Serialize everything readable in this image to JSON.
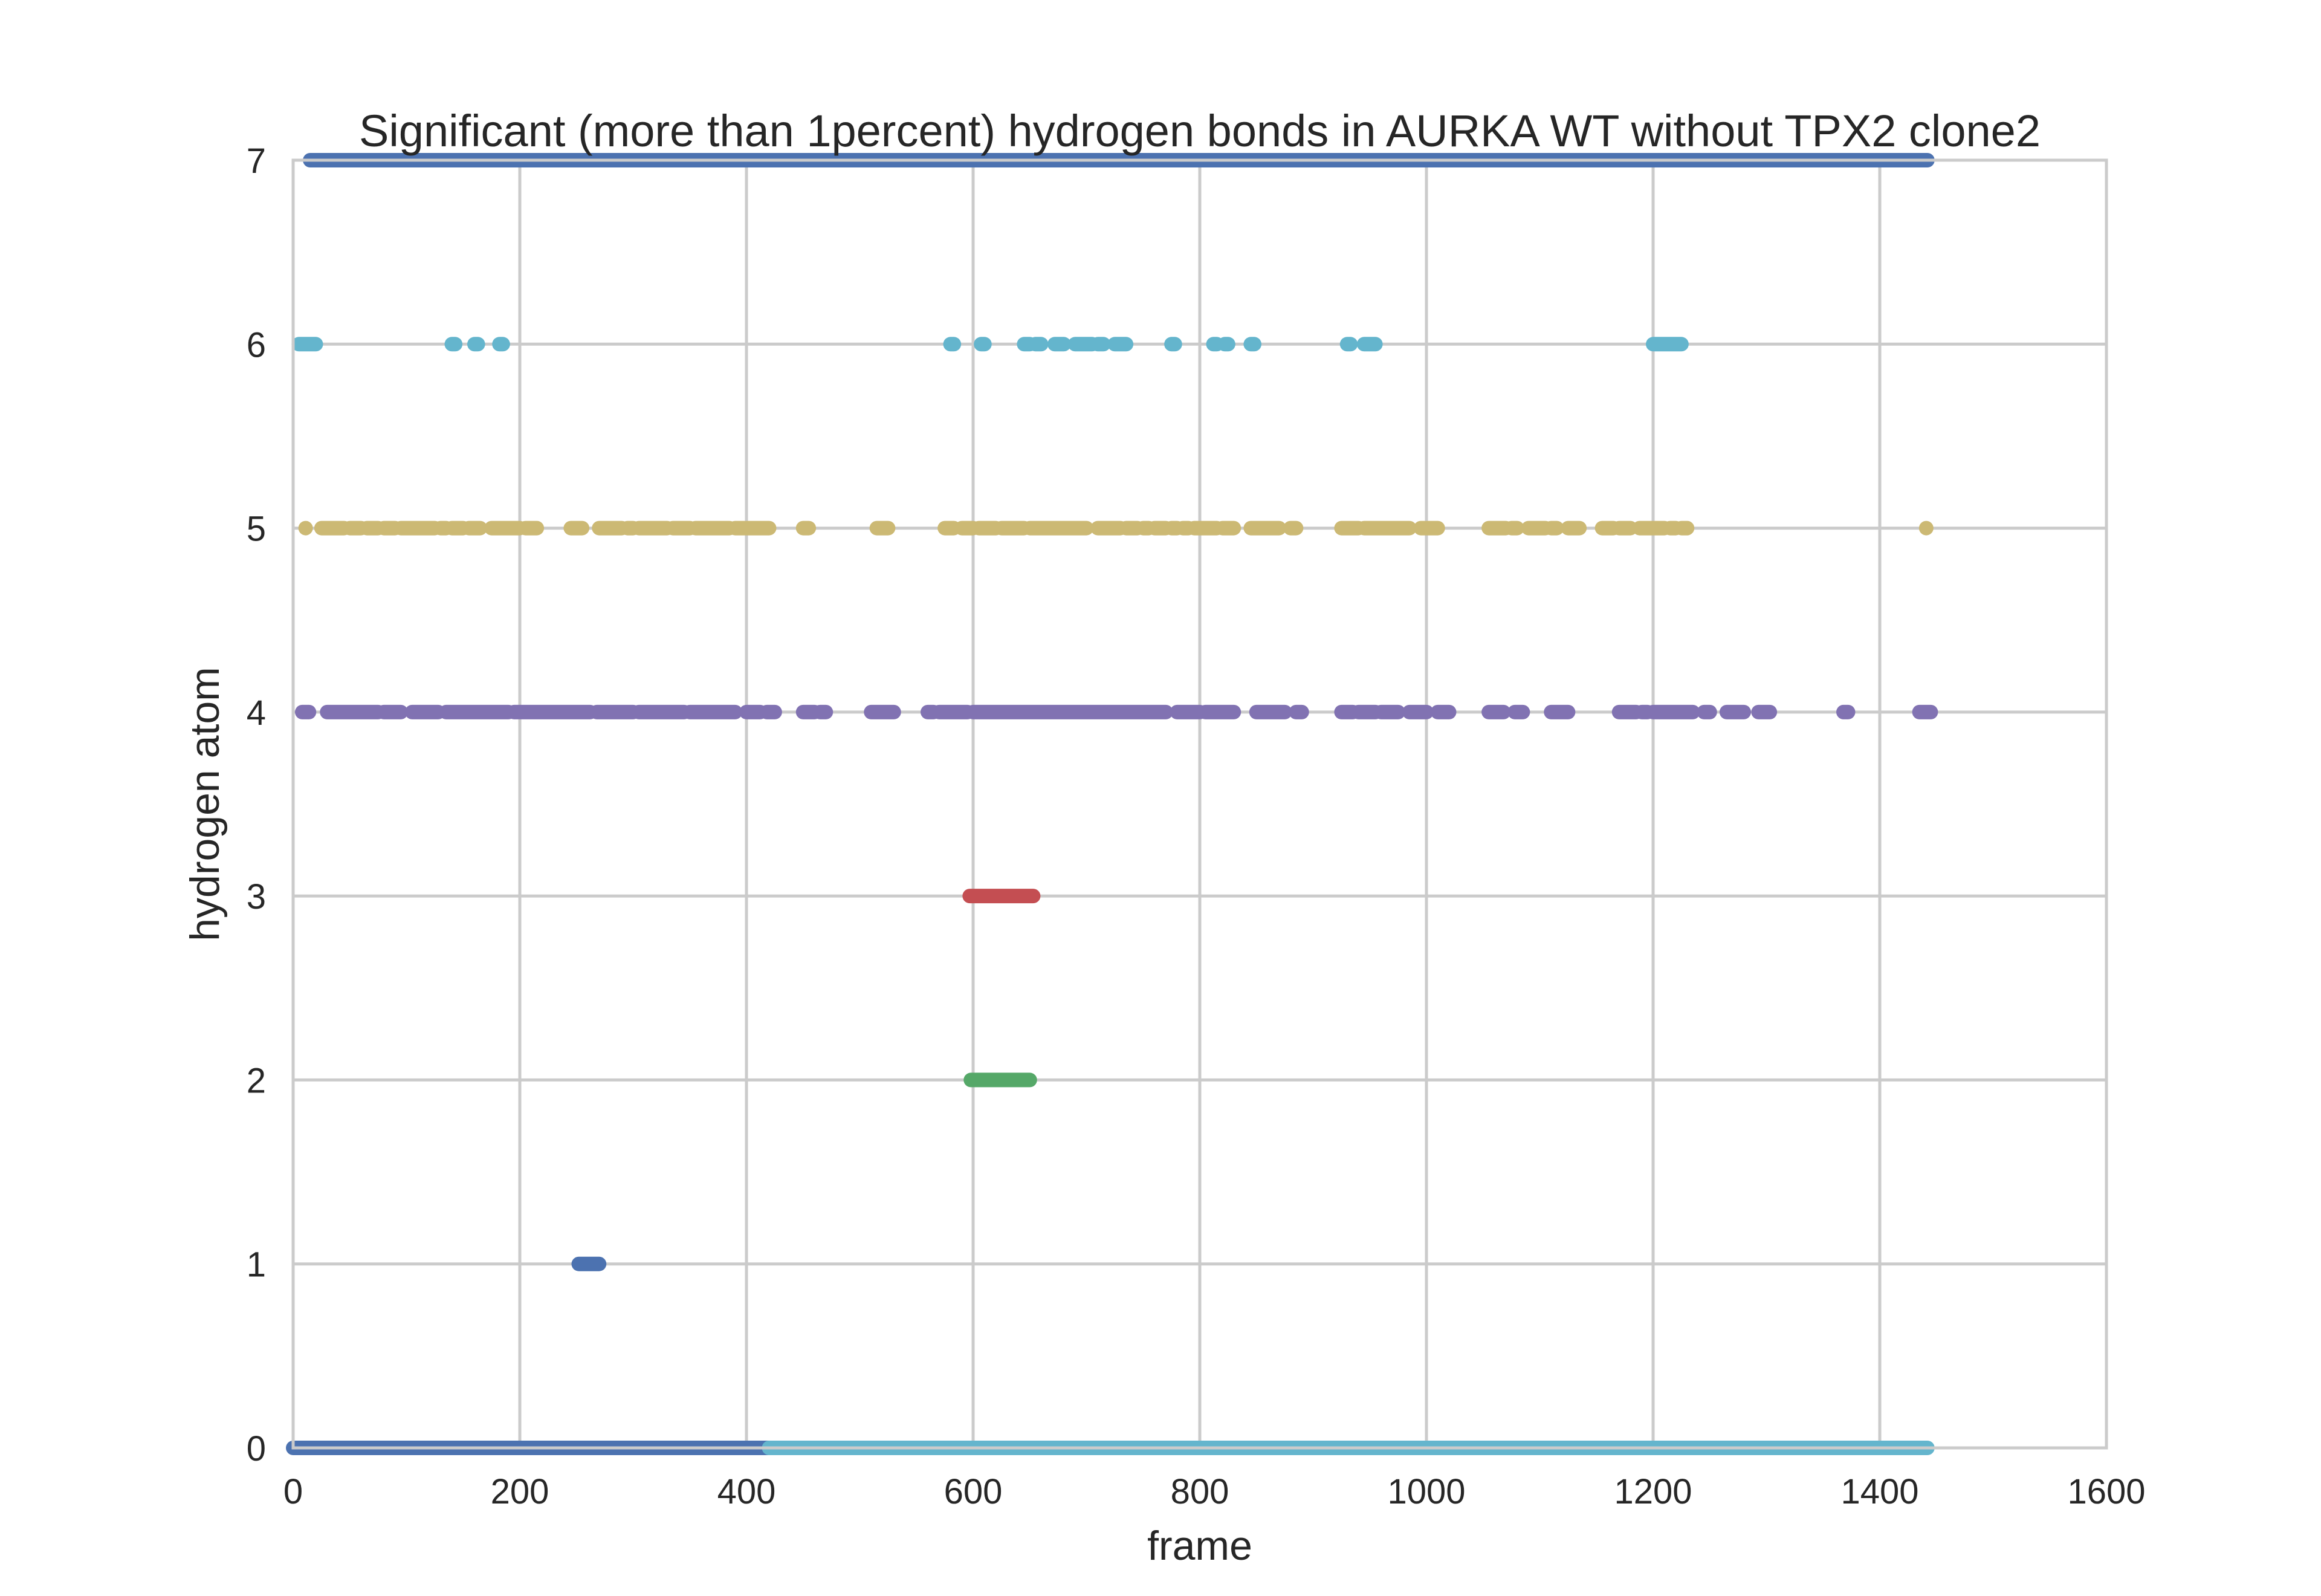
{
  "chart_data": {
    "type": "scatter",
    "title": "Significant (more than 1percent) hydrogen bonds in AURKA WT without TPX2 clone2",
    "xlabel": "frame",
    "ylabel": "hydrogen atom",
    "xlim": [
      0,
      1600
    ],
    "ylim": [
      0,
      7
    ],
    "xticks": [
      "0",
      "200",
      "400",
      "600",
      "800",
      "1000",
      "1200",
      "1400",
      "1600"
    ],
    "yticks": [
      "0",
      "1",
      "2",
      "3",
      "4",
      "5",
      "6",
      "7"
    ],
    "grid": true,
    "legend": "none",
    "colors": {
      "blue": "#4C72B0",
      "green": "#55A868",
      "red": "#C44E52",
      "purple": "#8172B2",
      "gold": "#CCB974",
      "cyan": "#64B5CD"
    },
    "series": [
      {
        "color": "blue",
        "y": 0,
        "segments": [
          [
            0,
            420
          ],
          [
            938,
            975
          ],
          [
            1108,
            1115
          ],
          [
            1190,
            1232
          ]
        ]
      },
      {
        "color": "cyan",
        "y": 0,
        "segments": [
          [
            420,
            1442
          ]
        ]
      },
      {
        "color": "blue",
        "y": 1,
        "segments": [
          [
            252,
            270
          ]
        ]
      },
      {
        "color": "green",
        "y": 2,
        "segments": [
          [
            598,
            650
          ]
        ]
      },
      {
        "color": "red",
        "y": 3,
        "segments": [
          [
            597,
            653
          ]
        ]
      },
      {
        "color": "purple",
        "y": 4,
        "segments": [
          [
            8,
            14
          ],
          [
            30,
            75
          ],
          [
            80,
            95
          ],
          [
            105,
            128
          ],
          [
            135,
            190
          ],
          [
            195,
            262
          ],
          [
            268,
            300
          ],
          [
            305,
            345
          ],
          [
            350,
            390
          ],
          [
            400,
            412
          ],
          [
            418,
            425
          ],
          [
            450,
            460
          ],
          [
            465,
            470
          ],
          [
            510,
            530
          ],
          [
            560,
            565
          ],
          [
            570,
            595
          ],
          [
            600,
            770
          ],
          [
            780,
            800
          ],
          [
            805,
            830
          ],
          [
            850,
            875
          ],
          [
            885,
            890
          ],
          [
            925,
            935
          ],
          [
            940,
            955
          ],
          [
            960,
            975
          ],
          [
            985,
            1000
          ],
          [
            1010,
            1020
          ],
          [
            1055,
            1068
          ],
          [
            1078,
            1085
          ],
          [
            1110,
            1125
          ],
          [
            1170,
            1185
          ],
          [
            1190,
            1195
          ],
          [
            1200,
            1235
          ],
          [
            1245,
            1250
          ],
          [
            1265,
            1280
          ],
          [
            1293,
            1303
          ],
          [
            1368,
            1372
          ],
          [
            1435,
            1445
          ]
        ]
      },
      {
        "color": "gold",
        "y": 5,
        "segments": [
          [
            10,
            12
          ],
          [
            25,
            45
          ],
          [
            50,
            60
          ],
          [
            65,
            75
          ],
          [
            80,
            90
          ],
          [
            95,
            125
          ],
          [
            130,
            135
          ],
          [
            140,
            150
          ],
          [
            155,
            165
          ],
          [
            175,
            200
          ],
          [
            205,
            215
          ],
          [
            245,
            255
          ],
          [
            270,
            290
          ],
          [
            295,
            300
          ],
          [
            305,
            330
          ],
          [
            335,
            350
          ],
          [
            355,
            385
          ],
          [
            390,
            420
          ],
          [
            450,
            455
          ],
          [
            515,
            525
          ],
          [
            575,
            583
          ],
          [
            590,
            600
          ],
          [
            605,
            620
          ],
          [
            625,
            645
          ],
          [
            650,
            700
          ],
          [
            710,
            730
          ],
          [
            735,
            745
          ],
          [
            750,
            755
          ],
          [
            760,
            770
          ],
          [
            775,
            780
          ],
          [
            785,
            790
          ],
          [
            795,
            815
          ],
          [
            820,
            830
          ],
          [
            845,
            870
          ],
          [
            880,
            885
          ],
          [
            925,
            940
          ],
          [
            945,
            985
          ],
          [
            995,
            1010
          ],
          [
            1055,
            1070
          ],
          [
            1075,
            1080
          ],
          [
            1090,
            1105
          ],
          [
            1110,
            1115
          ],
          [
            1125,
            1135
          ],
          [
            1155,
            1165
          ],
          [
            1170,
            1180
          ],
          [
            1188,
            1210
          ],
          [
            1215,
            1220
          ],
          [
            1225,
            1230
          ],
          [
            1440,
            1442
          ]
        ]
      },
      {
        "color": "cyan",
        "y": 6,
        "segments": [
          [
            5,
            20
          ],
          [
            140,
            143
          ],
          [
            160,
            163
          ],
          [
            182,
            185
          ],
          [
            580,
            583
          ],
          [
            607,
            610
          ],
          [
            645,
            650
          ],
          [
            655,
            660
          ],
          [
            672,
            680
          ],
          [
            690,
            705
          ],
          [
            710,
            715
          ],
          [
            725,
            735
          ],
          [
            775,
            778
          ],
          [
            812,
            815
          ],
          [
            822,
            825
          ],
          [
            845,
            848
          ],
          [
            930,
            933
          ],
          [
            945,
            955
          ],
          [
            1200,
            1225
          ]
        ]
      },
      {
        "color": "blue",
        "y": 7,
        "segments": [
          [
            15,
            1442
          ]
        ]
      }
    ]
  }
}
